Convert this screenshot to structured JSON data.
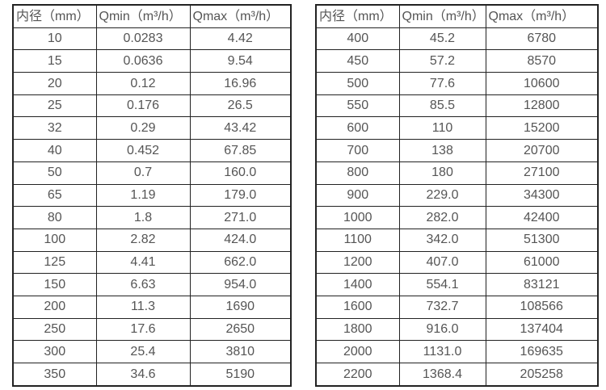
{
  "page": {
    "background": "#ffffff",
    "text_color": "#555555",
    "border_color": "#222222"
  },
  "tables": [
    {
      "name": "flow-range-table-small-diameters",
      "headers": [
        "内径（mm）",
        "Qmin（m³/h）",
        "Qmax（m³/h）"
      ],
      "rows": [
        [
          "10",
          "0.0283",
          "4.42"
        ],
        [
          "15",
          "0.0636",
          "9.54"
        ],
        [
          "20",
          "0.12",
          "16.96"
        ],
        [
          "25",
          "0.176",
          "26.5"
        ],
        [
          "32",
          "0.29",
          "43.42"
        ],
        [
          "40",
          "0.452",
          "67.85"
        ],
        [
          "50",
          "0.7",
          "160.0"
        ],
        [
          "65",
          "1.19",
          "179.0"
        ],
        [
          "80",
          "1.8",
          "271.0"
        ],
        [
          "100",
          "2.82",
          "424.0"
        ],
        [
          "125",
          "4.41",
          "662.0"
        ],
        [
          "150",
          "6.63",
          "954.0"
        ],
        [
          "200",
          "11.3",
          "1690"
        ],
        [
          "250",
          "17.6",
          "2650"
        ],
        [
          "300",
          "25.4",
          "3810"
        ],
        [
          "350",
          "34.6",
          "5190"
        ]
      ]
    },
    {
      "name": "flow-range-table-large-diameters",
      "headers": [
        "内径（mm）",
        "Qmin（m³/h）",
        "Qmax（m³/h）"
      ],
      "rows": [
        [
          "400",
          "45.2",
          "6780"
        ],
        [
          "450",
          "57.2",
          "8570"
        ],
        [
          "500",
          "77.6",
          "10600"
        ],
        [
          "550",
          "85.5",
          "12800"
        ],
        [
          "600",
          "110",
          "15200"
        ],
        [
          "700",
          "138",
          "20700"
        ],
        [
          "800",
          "180",
          "27100"
        ],
        [
          "900",
          "229.0",
          "34300"
        ],
        [
          "1000",
          "282.0",
          "42400"
        ],
        [
          "1100",
          "342.0",
          "51300"
        ],
        [
          "1200",
          "407.0",
          "61000"
        ],
        [
          "1400",
          "554.1",
          "83121"
        ],
        [
          "1600",
          "732.7",
          "108566"
        ],
        [
          "1800",
          "916.0",
          "137404"
        ],
        [
          "2000",
          "1131.0",
          "169635"
        ],
        [
          "2200",
          "1368.4",
          "205258"
        ]
      ]
    }
  ]
}
